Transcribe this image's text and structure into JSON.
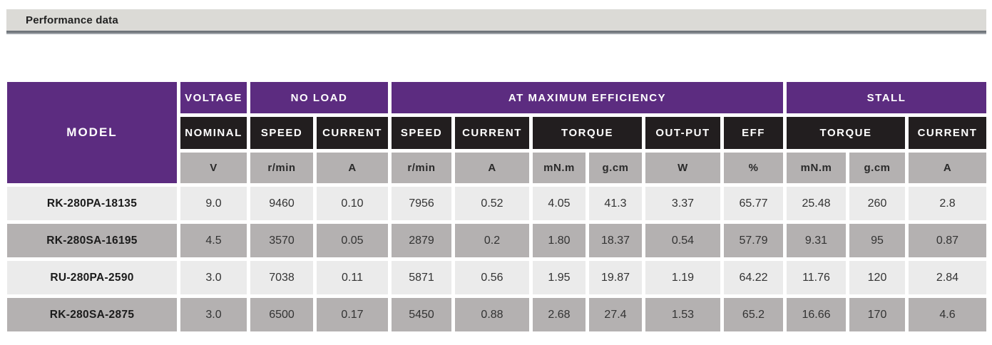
{
  "section": {
    "title": "Performance data"
  },
  "colors": {
    "purple": "#5C2C80",
    "black_cell": "#221E1F",
    "gray_mid": "#B4B1B1",
    "gray_light": "#EBEBEB",
    "titlebar_bg": "#DBDAD6",
    "titlebar_border_dark": "#70757B",
    "titlebar_border_light": "#9FA4A9"
  },
  "table": {
    "model_header": "MODEL",
    "groups": [
      {
        "label": "VOLTAGE"
      },
      {
        "label": "NO LOAD"
      },
      {
        "label": "AT MAXIMUM EFFICIENCY"
      },
      {
        "label": "STALL"
      }
    ],
    "subheaders": [
      {
        "label": "NOMINAL"
      },
      {
        "label": "SPEED"
      },
      {
        "label": "CURRENT"
      },
      {
        "label": "SPEED"
      },
      {
        "label": "CURRENT"
      },
      {
        "label": "TORQUE"
      },
      {
        "label": "OUT-PUT"
      },
      {
        "label": "EFF"
      },
      {
        "label": "TORQUE"
      },
      {
        "label": "CURRENT"
      }
    ],
    "units": [
      "V",
      "r/min",
      "A",
      "r/min",
      "A",
      "mN.m",
      "g.cm",
      "W",
      "%",
      "mN.m",
      "g.cm",
      "A"
    ],
    "rows": [
      {
        "model": "RK-280PA-18135",
        "values": [
          "9.0",
          "9460",
          "0.10",
          "7956",
          "0.52",
          "4.05",
          "41.3",
          "3.37",
          "65.77",
          "25.48",
          "260",
          "2.8"
        ]
      },
      {
        "model": "RK-280SA-16195",
        "values": [
          "4.5",
          "3570",
          "0.05",
          "2879",
          "0.2",
          "1.80",
          "18.37",
          "0.54",
          "57.79",
          "9.31",
          "95",
          "0.87"
        ]
      },
      {
        "model": "RU-280PA-2590",
        "values": [
          "3.0",
          "7038",
          "0.11",
          "5871",
          "0.56",
          "1.95",
          "19.87",
          "1.19",
          "64.22",
          "11.76",
          "120",
          "2.84"
        ]
      },
      {
        "model": "RK-280SA-2875",
        "values": [
          "3.0",
          "6500",
          "0.17",
          "5450",
          "0.88",
          "2.68",
          "27.4",
          "1.53",
          "65.2",
          "16.66",
          "170",
          "4.6"
        ]
      }
    ]
  }
}
